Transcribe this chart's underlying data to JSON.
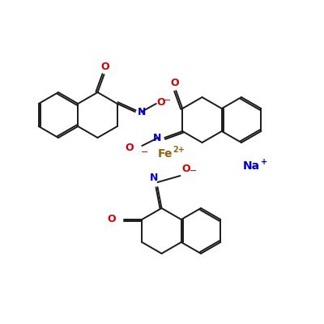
{
  "bg_color": "#ffffff",
  "bond_color": "#1a1a1a",
  "N_color": "#0000cc",
  "O_color": "#cc0000",
  "Fe_color": "#8b6914",
  "Na_color": "#0000cc",
  "Fe_label": "Fe",
  "Fe_super": "2+",
  "Na_label": "Na",
  "Na_super": "+",
  "figsize": [
    4.0,
    4.0
  ],
  "dpi": 100,
  "lw": 1.4,
  "ring_r": 28
}
